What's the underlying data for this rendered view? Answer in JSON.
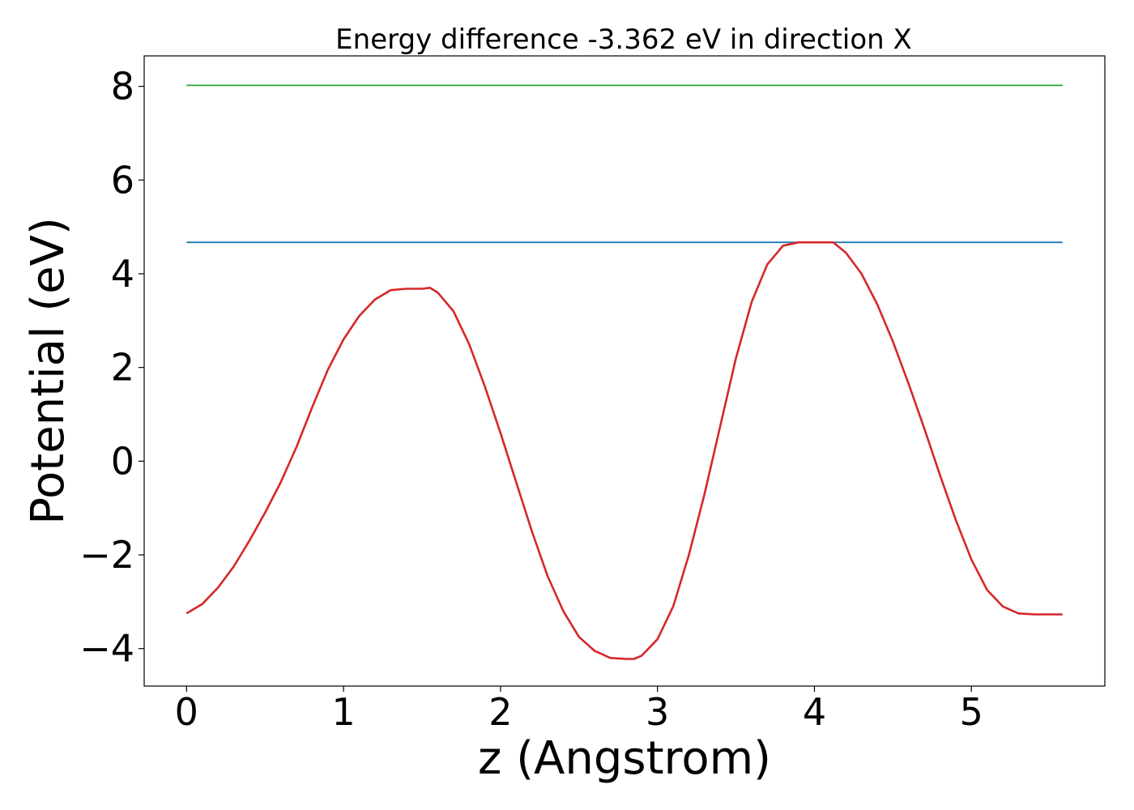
{
  "chart_data": {
    "type": "line",
    "title": "Energy difference -3.362 eV in direction X",
    "xlabel": "z (Angstrom)",
    "ylabel": "Potential (eV)",
    "xlim": [
      -0.27,
      5.85
    ],
    "ylim": [
      -4.8,
      8.65
    ],
    "xticks": [
      0,
      1,
      2,
      3,
      4,
      5
    ],
    "yticks": [
      -4,
      -2,
      0,
      2,
      4,
      6,
      8
    ],
    "xtick_labels": [
      "0",
      "1",
      "2",
      "3",
      "4",
      "5"
    ],
    "ytick_labels": [
      "−4",
      "−2",
      "0",
      "2",
      "4",
      "6",
      "8"
    ],
    "grid": false,
    "series": [
      {
        "color": "#2ca02c",
        "x": [
          0,
          5.58
        ],
        "y": [
          8.02,
          8.02
        ]
      },
      {
        "color": "#1f77b4",
        "x": [
          0,
          5.58
        ],
        "y": [
          4.67,
          4.67
        ]
      },
      {
        "color": "#d62728",
        "x": [
          0,
          0.1,
          0.2,
          0.3,
          0.4,
          0.5,
          0.6,
          0.7,
          0.8,
          0.9,
          1.0,
          1.1,
          1.2,
          1.3,
          1.4,
          1.5,
          1.55,
          1.6,
          1.7,
          1.8,
          1.9,
          2.0,
          2.1,
          2.2,
          2.3,
          2.4,
          2.5,
          2.6,
          2.7,
          2.8,
          2.85,
          2.9,
          3.0,
          3.1,
          3.2,
          3.3,
          3.4,
          3.5,
          3.6,
          3.7,
          3.8,
          3.9,
          4.0,
          4.12,
          4.2,
          4.3,
          4.4,
          4.5,
          4.6,
          4.7,
          4.8,
          4.9,
          5.0,
          5.1,
          5.2,
          5.3,
          5.4,
          5.5,
          5.58
        ],
        "y": [
          -3.25,
          -3.05,
          -2.7,
          -2.25,
          -1.7,
          -1.1,
          -0.45,
          0.3,
          1.15,
          1.95,
          2.6,
          3.1,
          3.45,
          3.65,
          3.68,
          3.68,
          3.7,
          3.6,
          3.2,
          2.5,
          1.6,
          0.6,
          -0.45,
          -1.5,
          -2.45,
          -3.2,
          -3.75,
          -4.05,
          -4.2,
          -4.22,
          -4.22,
          -4.15,
          -3.8,
          -3.1,
          -2.0,
          -0.7,
          0.75,
          2.2,
          3.4,
          4.2,
          4.6,
          4.67,
          4.67,
          4.67,
          4.45,
          4.0,
          3.35,
          2.55,
          1.65,
          0.7,
          -0.3,
          -1.25,
          -2.1,
          -2.75,
          -3.1,
          -3.25,
          -3.27,
          -3.27,
          -3.27
        ]
      }
    ]
  }
}
